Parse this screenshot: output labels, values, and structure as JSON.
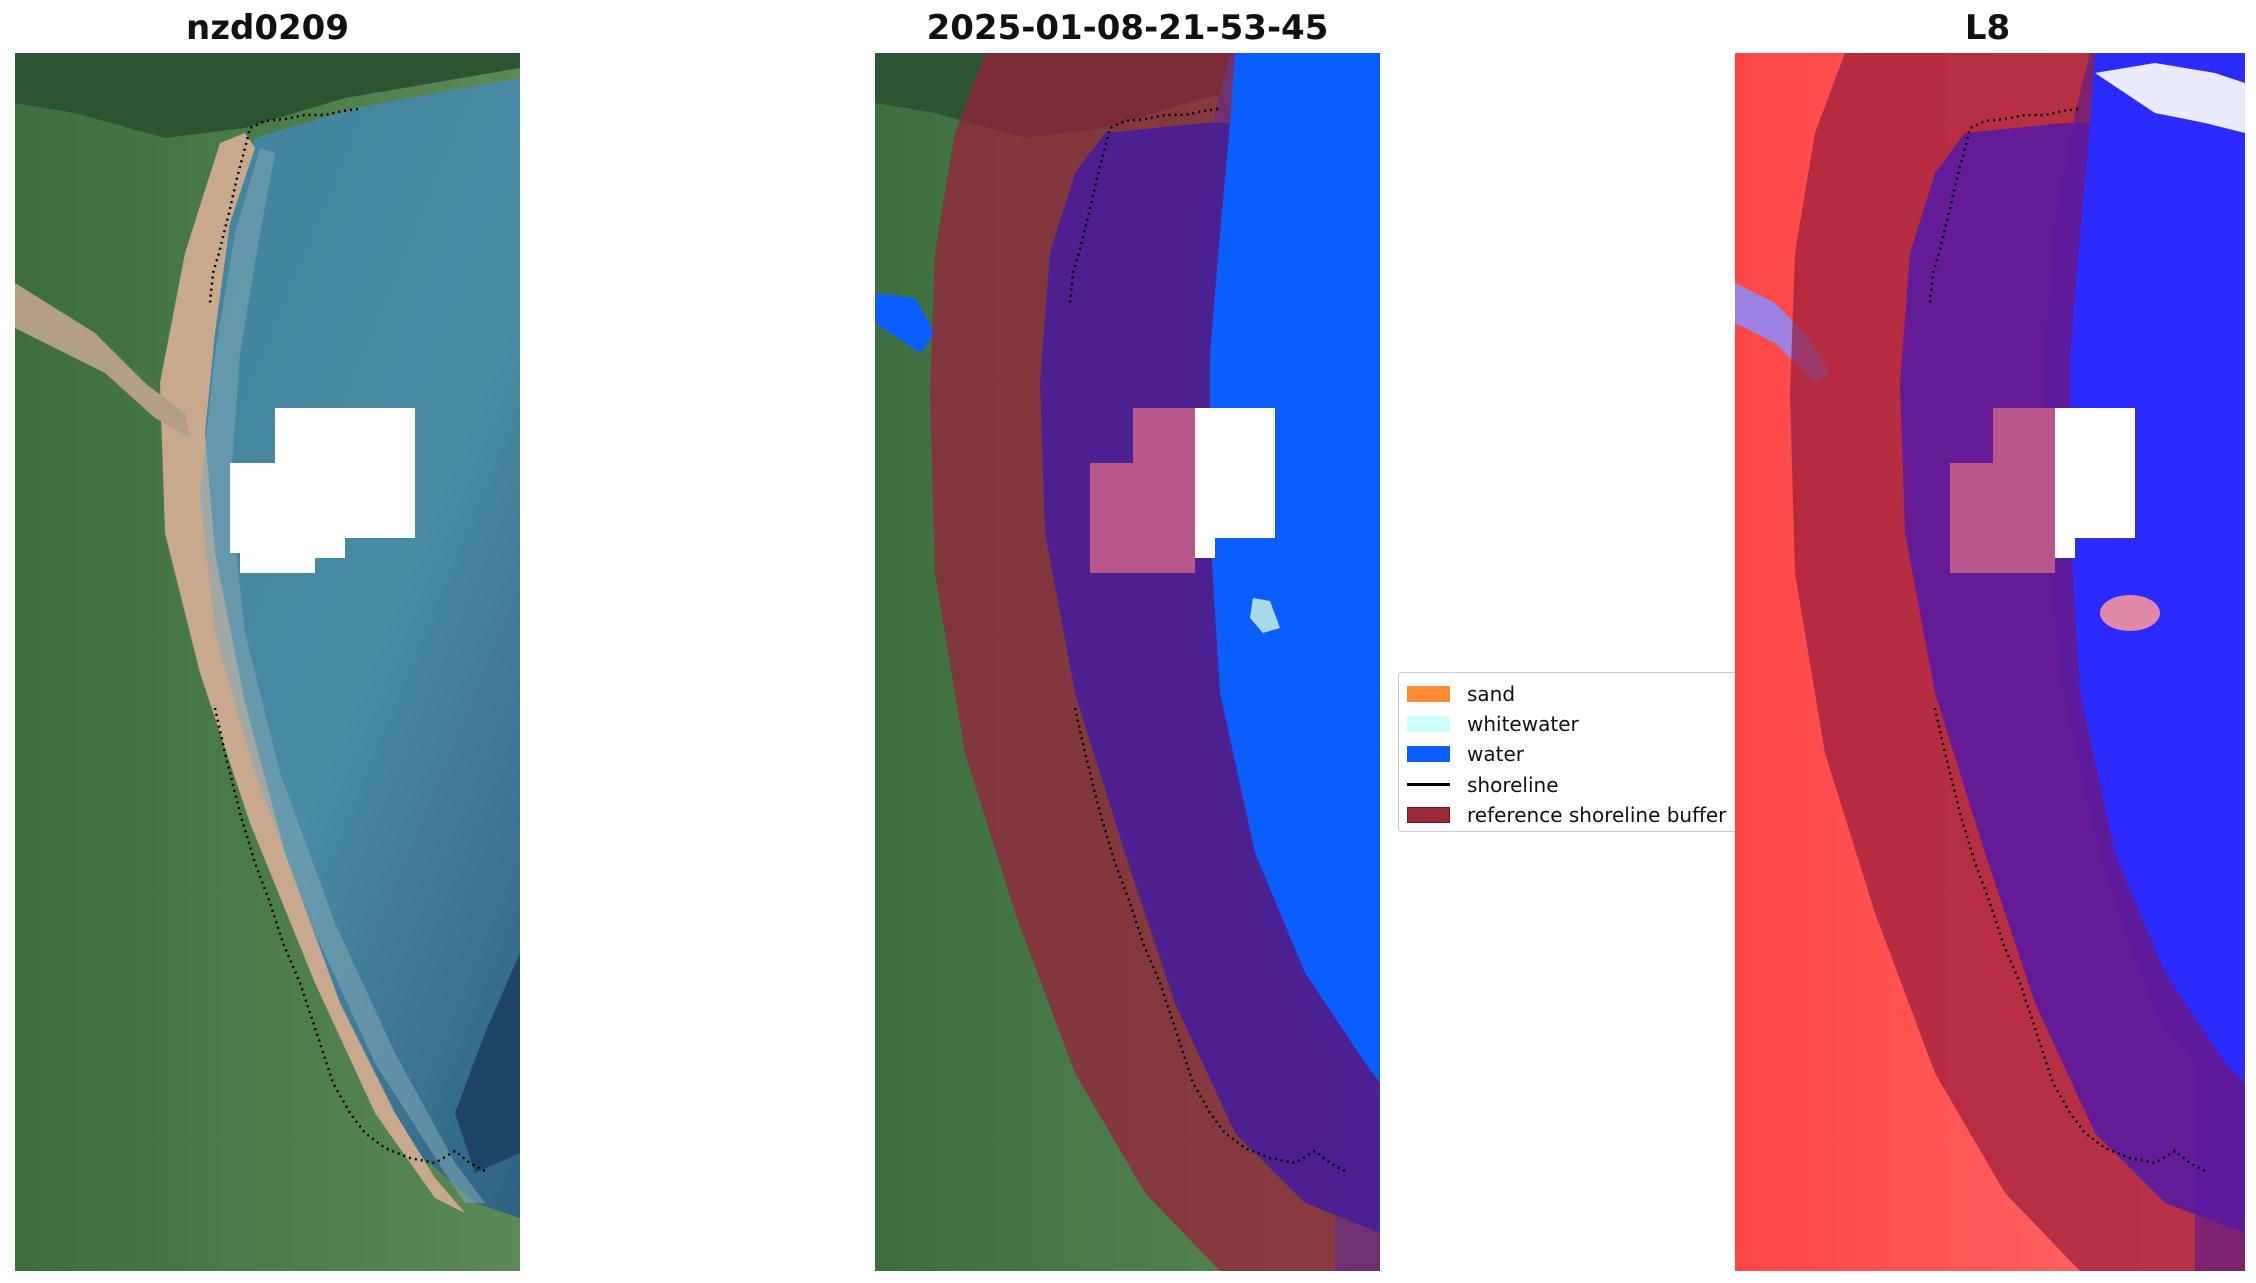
{
  "panels": [
    {
      "title": "nzd0209",
      "content": "satellite RGB image with reference shoreline"
    },
    {
      "title": "2025-01-08-21-53-45",
      "content": "classified image with shoreline buffer overlay"
    },
    {
      "title": "L8",
      "content": "water index image with shoreline buffer overlay"
    }
  ],
  "legend": {
    "items": [
      {
        "label": "sand",
        "kind": "patch",
        "color": "#ff8c33"
      },
      {
        "label": "whitewater",
        "kind": "patch",
        "color": "#ccfffc"
      },
      {
        "label": "water",
        "kind": "patch",
        "color": "#0a5eff"
      },
      {
        "label": "shoreline",
        "kind": "line",
        "color": "#000000"
      },
      {
        "label": "reference shoreline buffer",
        "kind": "patch",
        "color": "#9a2b34"
      }
    ]
  },
  "colors": {
    "buffer": "#9a1f3a",
    "water_class": "#0a5eff",
    "cloud_mask": "#ffffff",
    "index_land": "#ff3a3a",
    "index_water": "#2b2bff"
  }
}
